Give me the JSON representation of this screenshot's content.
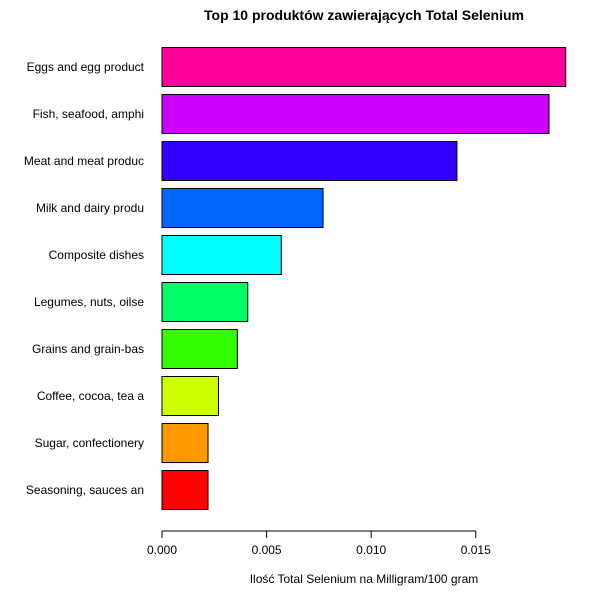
{
  "chart_data": {
    "type": "bar",
    "orientation": "horizontal",
    "title": "Top 10 produktów zawierających Total Selenium",
    "xlabel": "Ilość Total Selenium na Milligram/100 gram",
    "ylabel": "",
    "xlim": [
      0,
      0.0196
    ],
    "x_ticks": [
      0.0,
      0.005,
      0.01,
      0.015
    ],
    "x_tick_labels": [
      "0.000",
      "0.005",
      "0.010",
      "0.015"
    ],
    "grid": false,
    "legend": "none",
    "categories": [
      "Eggs and egg product",
      "Fish, seafood, amphi",
      "Meat and meat produc",
      "Milk and dairy produ",
      "Composite dishes",
      "Legumes, nuts, oilse",
      "Grains and grain-bas",
      "Coffee, cocoa, tea a",
      "Sugar, confectionery",
      "Seasoning, sauces an"
    ],
    "values": [
      0.0193,
      0.0185,
      0.0141,
      0.0077,
      0.0057,
      0.0041,
      0.0036,
      0.0027,
      0.0022,
      0.0022
    ],
    "colors": [
      "#FF0099",
      "#CC00FF",
      "#3300FF",
      "#0066FF",
      "#00FFFF",
      "#00FF66",
      "#33FF00",
      "#CCFF00",
      "#FF9900",
      "#FF0000"
    ]
  }
}
